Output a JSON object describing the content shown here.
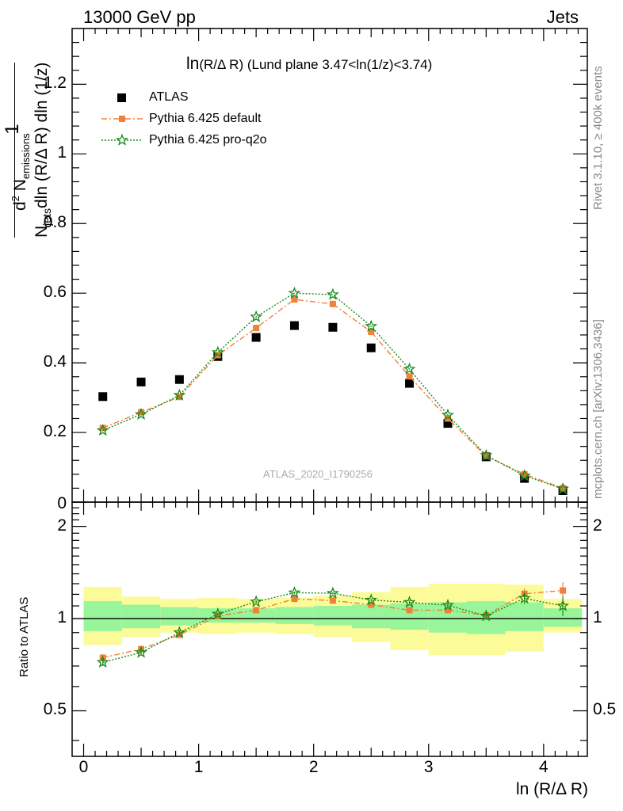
{
  "header": {
    "left": "13000 GeV pp",
    "right": "Jets"
  },
  "side_labels": {
    "rivet": "Rivet 3.1.10, ≥ 400k events",
    "mcplots": "mcplots.cern.ch [arXiv:1306.3436]"
  },
  "colors": {
    "atlas": "#000000",
    "default": "#f0803a",
    "pro_q2o": "#1a8a1a",
    "band_inner": "#99f599",
    "band_outer": "#fbfb99"
  },
  "chart_data": [
    {
      "type": "scatter",
      "title_main": "ln",
      "title_rest": "(R/Δ R) (Lund plane 3.47<ln(1/z)<3.74)",
      "watermark": "ATLAS_2020_I1790256",
      "ylabel_parts": {
        "one": "1",
        "n_jets": "N",
        "n_jets_sub": "jets",
        "mid": "dln (R/Δ R) dln (1/z)",
        "d2": "d",
        "d2_sup": "2",
        "n_em": " N",
        "n_em_sub": "emissions"
      },
      "ylim": [
        0,
        1.36
      ],
      "yticks": [
        {
          "v": 0.2,
          "label": "0.2"
        },
        {
          "v": 0.4,
          "label": "0.4"
        },
        {
          "v": 0.6,
          "label": "0.6"
        },
        {
          "v": 0.8,
          "label": "0.8"
        },
        {
          "v": 1.0,
          "label": "1"
        },
        {
          "v": 1.2,
          "label": "1.2"
        }
      ],
      "ytick_zero_partial": "0",
      "xlim": [
        -0.1,
        4.38
      ],
      "x": [
        0.167,
        0.5,
        0.833,
        1.167,
        1.5,
        1.833,
        2.167,
        2.5,
        2.833,
        3.167,
        3.5,
        3.833,
        4.167
      ],
      "series": [
        {
          "name": "ATLAS",
          "key": "atlas",
          "values": [
            0.303,
            0.345,
            0.352,
            0.418,
            0.473,
            0.507,
            0.502,
            0.443,
            0.341,
            0.226,
            0.13,
            0.068,
            0.033
          ]
        },
        {
          "name": "Pythia 6.425 default",
          "key": "default",
          "values": [
            0.213,
            0.258,
            0.302,
            0.422,
            0.5,
            0.582,
            0.569,
            0.489,
            0.361,
            0.24,
            0.132,
            0.08,
            0.04
          ]
        },
        {
          "name": "Pythia 6.425 pro-q2o",
          "key": "pro_q2o",
          "values": [
            0.206,
            0.252,
            0.307,
            0.43,
            0.532,
            0.6,
            0.596,
            0.505,
            0.382,
            0.25,
            0.134,
            0.076,
            0.038
          ]
        }
      ]
    },
    {
      "type": "scatter",
      "ylabel": "Ratio to ATLAS",
      "xlabel": "ln (R/Δ R)",
      "ylim": [
        0.355,
        2.4
      ],
      "ylog": true,
      "yticks": [
        {
          "v": 0.5,
          "label": "0.5"
        },
        {
          "v": 1,
          "label": "1"
        },
        {
          "v": 2,
          "label": "2"
        }
      ],
      "xlim": [
        -0.1,
        4.38
      ],
      "xticks": [
        {
          "v": 0,
          "label": "0"
        },
        {
          "v": 1,
          "label": "1"
        },
        {
          "v": 2,
          "label": "2"
        },
        {
          "v": 3,
          "label": "3"
        },
        {
          "v": 4,
          "label": "4"
        }
      ],
      "bin_edges": [
        0,
        0.333,
        0.667,
        1.0,
        1.333,
        1.667,
        2.0,
        2.333,
        2.667,
        3.0,
        3.333,
        3.667,
        4.0,
        4.333
      ],
      "band_inner": [
        [
          0.91,
          1.14
        ],
        [
          0.93,
          1.11
        ],
        [
          0.95,
          1.09
        ],
        [
          0.97,
          1.08
        ],
        [
          0.97,
          1.08
        ],
        [
          0.96,
          1.09
        ],
        [
          0.95,
          1.1
        ],
        [
          0.93,
          1.11
        ],
        [
          0.92,
          1.12
        ],
        [
          0.9,
          1.13
        ],
        [
          0.89,
          1.14
        ],
        [
          0.91,
          1.13
        ],
        [
          0.94,
          1.08
        ]
      ],
      "band_outer": [
        [
          0.82,
          1.27
        ],
        [
          0.87,
          1.18
        ],
        [
          0.9,
          1.16
        ],
        [
          0.89,
          1.17
        ],
        [
          0.9,
          1.16
        ],
        [
          0.89,
          1.17
        ],
        [
          0.87,
          1.19
        ],
        [
          0.84,
          1.22
        ],
        [
          0.79,
          1.27
        ],
        [
          0.76,
          1.3
        ],
        [
          0.76,
          1.3
        ],
        [
          0.78,
          1.29
        ],
        [
          0.9,
          1.16
        ]
      ],
      "x": [
        0.167,
        0.5,
        0.833,
        1.167,
        1.5,
        1.833,
        2.167,
        2.5,
        2.833,
        3.167,
        3.5,
        3.833,
        4.167
      ],
      "series": [
        {
          "name": "Pythia 6.425 default",
          "key": "default",
          "values": [
            0.745,
            0.795,
            0.885,
            1.02,
            1.065,
            1.16,
            1.145,
            1.11,
            1.065,
            1.065,
            1.025,
            1.205,
            1.235
          ],
          "errors": [
            0.02,
            0.015,
            0.015,
            0.01,
            0.01,
            0.01,
            0.01,
            0.01,
            0.015,
            0.015,
            0.03,
            0.05,
            0.08
          ]
        },
        {
          "name": "Pythia 6.425 pro-q2o",
          "key": "pro_q2o",
          "values": [
            0.72,
            0.775,
            0.9,
            1.035,
            1.135,
            1.215,
            1.21,
            1.15,
            1.13,
            1.105,
            1.02,
            1.165,
            1.1
          ],
          "errors": [
            0.02,
            0.015,
            0.015,
            0.01,
            0.01,
            0.01,
            0.01,
            0.01,
            0.015,
            0.02,
            0.03,
            0.05,
            0.08
          ]
        }
      ]
    }
  ]
}
